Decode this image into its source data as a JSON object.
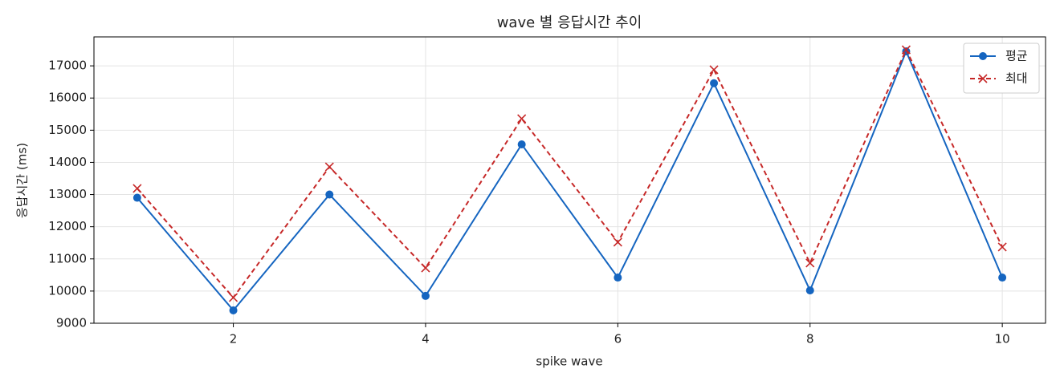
{
  "chart_data": {
    "type": "line",
    "title": "wave 별 응답시간 추이",
    "xlabel": "spike wave",
    "ylabel": "응답시간 (ms)",
    "x": [
      1,
      2,
      3,
      4,
      5,
      6,
      7,
      8,
      9,
      10
    ],
    "series": [
      {
        "name": "평균",
        "color": "#1565c0",
        "marker": "circle",
        "linestyle": "solid",
        "values": [
          12900,
          9400,
          13000,
          9850,
          14560,
          10420,
          16460,
          10020,
          17450,
          10420
        ]
      },
      {
        "name": "최대",
        "color": "#c62828",
        "marker": "x",
        "linestyle": "dashed",
        "values": [
          13190,
          9800,
          13860,
          10720,
          15360,
          11520,
          16880,
          10870,
          17500,
          11370
        ]
      }
    ],
    "xlim": [
      0.55,
      10.45
    ],
    "xticks": [
      2,
      4,
      6,
      8,
      10
    ],
    "ylim": [
      9000,
      17900
    ],
    "yticks": [
      9000,
      10000,
      11000,
      12000,
      13000,
      14000,
      15000,
      16000,
      17000
    ],
    "grid": true,
    "legend": "upper right"
  }
}
